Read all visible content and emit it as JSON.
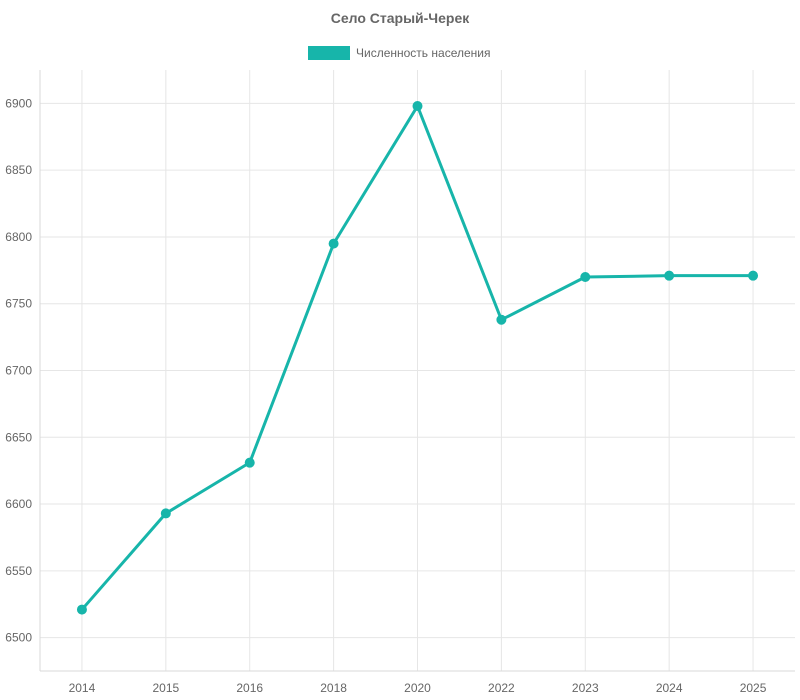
{
  "chart_data": {
    "type": "line",
    "title": "Село Старый-Черек",
    "xlabel": "",
    "ylabel": "",
    "categories": [
      "2014",
      "2015",
      "2016",
      "2018",
      "2020",
      "2022",
      "2023",
      "2024",
      "2025"
    ],
    "series": [
      {
        "name": "Численность населения",
        "values": [
          6521,
          6593,
          6631,
          6795,
          6898,
          6738,
          6770,
          6771,
          6771
        ],
        "color": "#17b5aa"
      }
    ],
    "ylim": [
      6475,
      6925
    ],
    "yticks": [
      6500,
      6550,
      6600,
      6650,
      6700,
      6750,
      6800,
      6850,
      6900
    ],
    "grid": true,
    "legend": "top-center"
  }
}
